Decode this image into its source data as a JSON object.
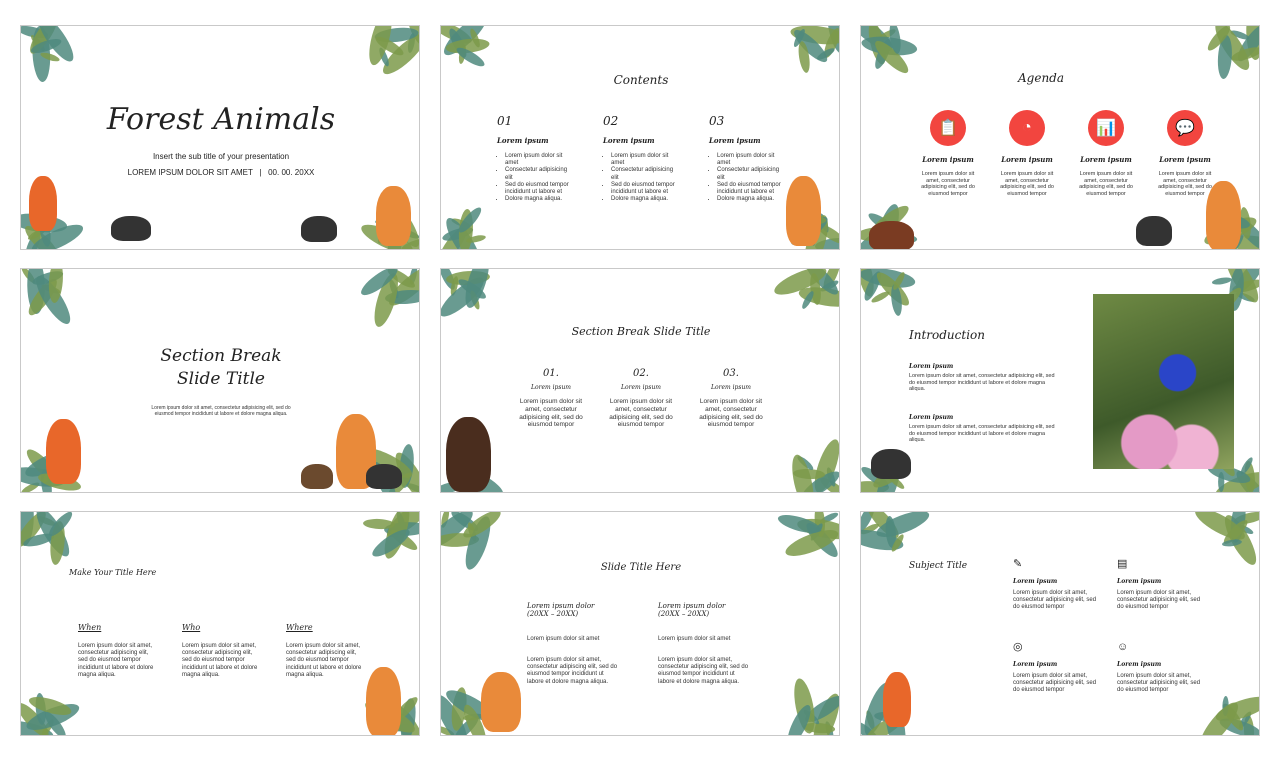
{
  "colors": {
    "accent": "#f2453f",
    "leaf_dark": "#4f8a7e",
    "leaf_olive": "#7c9a4a",
    "fox": "#e8672a"
  },
  "slides": [
    {
      "kind": "title",
      "title": "Forest Animals",
      "subtitle": "Insert the sub title of your presentation",
      "meta": "LOREM IPSUM DOLOR SIT AMET   |   00. 00. 20XX"
    },
    {
      "kind": "contents",
      "title": "Contents",
      "columns": [
        {
          "num": "01",
          "heading": "Lorem ipsum",
          "bullets": [
            "Lorem ipsum dolor sit amet",
            "Consectetur adipisicing elit",
            "Sed do eiusmod tempor incididunt ut labore et",
            "Dolore magna aliqua."
          ]
        },
        {
          "num": "02",
          "heading": "Lorem ipsum",
          "bullets": [
            "Lorem ipsum dolor sit amet",
            "Consectetur adipisicing elit",
            "Sed do eiusmod tempor incididunt ut labore et",
            "Dolore magna aliqua."
          ]
        },
        {
          "num": "03",
          "heading": "Lorem ipsum",
          "bullets": [
            "Lorem ipsum dolor sit amet",
            "Consectetur adipisicing elit",
            "Sed do eiusmod tempor incididunt ut labore et",
            "Dolore magna aliqua."
          ]
        }
      ]
    },
    {
      "kind": "agenda",
      "title": "Agenda",
      "items": [
        {
          "icon": "clipboard-icon",
          "glyph": "📋",
          "heading": "Lorem ipsum",
          "text": "Lorem ipsum dolor sit amet, consectetur adipisicing elit, sed do eiusmod tempor"
        },
        {
          "icon": "pie-chart-icon",
          "glyph": "◔",
          "heading": "Lorem ipsum",
          "text": "Lorem ipsum dolor sit amet, consectetur adipisicing elit, sed do eiusmod tempor"
        },
        {
          "icon": "bar-chart-icon",
          "glyph": "📊",
          "heading": "Lorem ipsum",
          "text": "Lorem ipsum dolor sit amet, consectetur adipisicing elit, sed do eiusmod tempor"
        },
        {
          "icon": "chat-icon",
          "glyph": "💬",
          "heading": "Lorem ipsum",
          "text": "Lorem ipsum dolor sit amet, consectetur adipisicing elit, sed do eiusmod tempor"
        }
      ]
    },
    {
      "kind": "section",
      "title": "Section Break\nSlide Title",
      "text": "Lorem ipsum dolor sit amet, consectetur adipisicing elit, sed do\neiusmod tempor incididunt ut labore et dolore magna aliqua."
    },
    {
      "kind": "section2",
      "title": "Section Break Slide Title",
      "columns": [
        {
          "num": "01.",
          "heading": "Lorem ipsum",
          "text": "Lorem ipsum dolor sit amet, consectetur adipisicing elit, sed do eiusmod tempor"
        },
        {
          "num": "02.",
          "heading": "Lorem ipsum",
          "text": "Lorem ipsum dolor sit amet, consectetur adipisicing elit, sed do eiusmod tempor"
        },
        {
          "num": "03.",
          "heading": "Lorem ipsum",
          "text": "Lorem ipsum dolor sit amet, consectetur adipisicing elit, sed do eiusmod tempor"
        }
      ]
    },
    {
      "kind": "intro",
      "title": "Introduction",
      "blocks": [
        {
          "heading": "Lorem ipsum",
          "text": "Lorem ipsum dolor sit amet, consectetur adipisicing elit, sed do eiusmod tempor incididunt ut labore et dolore magna aliqua."
        },
        {
          "heading": "Lorem ipsum",
          "text": "Lorem ipsum dolor sit amet, consectetur adipisicing elit, sed do eiusmod tempor incididunt ut labore et dolore magna aliqua."
        }
      ]
    },
    {
      "kind": "www",
      "title": "Make Your Title Here",
      "columns": [
        {
          "heading": "When",
          "text": "Lorem ipsum dolor sit amet, consectetur adipiscing elit, sed do eiusmod tempor incididunt ut labore et dolore magna aliqua."
        },
        {
          "heading": "Who",
          "text": "Lorem ipsum dolor sit amet, consectetur adipiscing elit, sed do eiusmod tempor incididunt ut labore et dolore magna aliqua."
        },
        {
          "heading": "Where",
          "text": "Lorem ipsum dolor sit amet, consectetur adipiscing elit, sed do eiusmod tempor incididunt ut labore et dolore magna aliqua."
        }
      ]
    },
    {
      "kind": "timeline",
      "title": "Slide Title Here",
      "columns": [
        {
          "heading": "Lorem ipsum dolor\n(20XX – 20XX)",
          "line": "Lorem ipsum dolor sit amet",
          "text": "Lorem ipsum dolor sit amet, consectetur adipiscing elit, sed do eiusmod tempor incididunt ut labore et dolore magna aliqua."
        },
        {
          "heading": "Lorem ipsum dolor\n(20XX – 20XX)",
          "line": "Lorem ipsum dolor sit amet",
          "text": "Lorem ipsum dolor sit amet, consectetur adipiscing elit, sed do eiusmod tempor incididunt ut labore et dolore magna aliqua."
        }
      ]
    },
    {
      "kind": "subject",
      "title": "Subject Title",
      "items": [
        {
          "icon": "document-edit-icon",
          "glyph": "✎",
          "heading": "Lorem ipsum",
          "text": "Lorem ipsum dolor sit amet, consectetur adipisicing elit, sed do eiusmod tempor"
        },
        {
          "icon": "web-page-icon",
          "glyph": "▤",
          "heading": "Lorem ipsum",
          "text": "Lorem ipsum dolor sit amet, consectetur adipisicing elit, sed do eiusmod tempor"
        },
        {
          "icon": "target-icon",
          "glyph": "◎",
          "heading": "Lorem ipsum",
          "text": "Lorem ipsum dolor sit amet, consectetur adipisicing elit, sed do eiusmod tempor"
        },
        {
          "icon": "idea-icon",
          "glyph": "☺",
          "heading": "Lorem ipsum",
          "text": "Lorem ipsum dolor sit amet, consectetur adipisicing elit, sed do eiusmod tempor"
        }
      ]
    }
  ]
}
